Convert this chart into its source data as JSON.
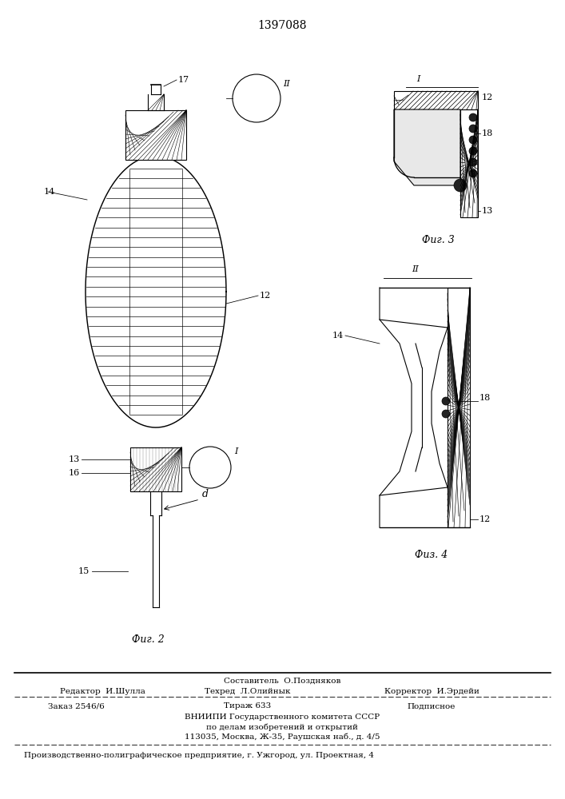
{
  "title": "1397088",
  "title_fontsize": 10,
  "background_color": "#ffffff",
  "fig2_label": "Фиг. 2",
  "fig3_label": "Фиг. 3",
  "fig4_label": "Физ. 4",
  "footer_sestavitel": "Составитель  О.Поздняков",
  "footer_redaktor": "Редактор  И.Шулла",
  "footer_tehred": "Техред  Л.Олийнык",
  "footer_korrektor": "Корректор  И.Эрдейи",
  "footer_zakaz": "Заказ 2546/6",
  "footer_tirazh": "Тираж 633",
  "footer_podpisnoe": "Подписное",
  "footer_vniipи1": "ВНИИПИ Государственного комитета СССР",
  "footer_vniipи2": "по делам изобретений и открытий",
  "footer_address": "113035, Москва, Ж-35, Раушская наб., д. 4/5",
  "footer_predpr": "Производственно-полиграфическое предприятие, г. Ужгород, ул. Проектная, 4",
  "line_color": "#000000",
  "label_fontsize": 8,
  "small_fontsize": 7.5
}
